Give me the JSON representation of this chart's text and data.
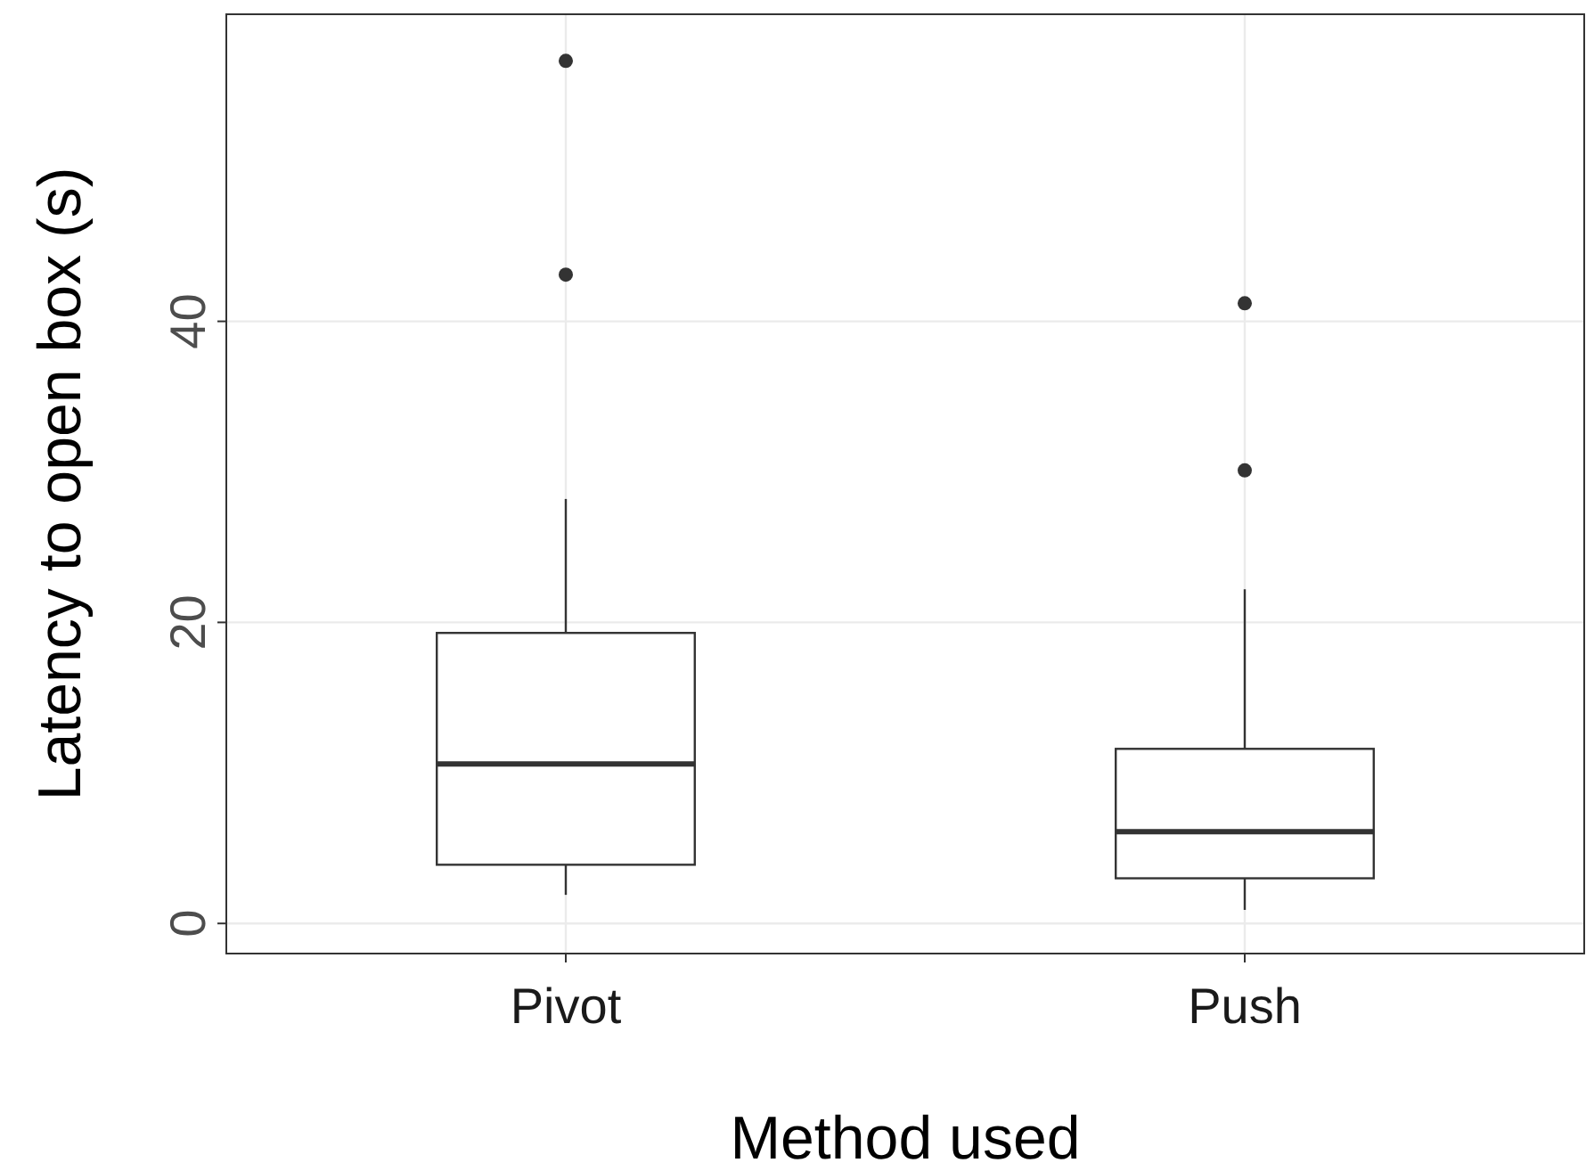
{
  "chart_data": {
    "type": "box",
    "xlabel": "Method used",
    "ylabel": "Latency to open box (s)",
    "categories": [
      "Pivot",
      "Push"
    ],
    "boxes": [
      {
        "low": 1.9,
        "q1": 3.9,
        "median": 10.6,
        "q3": 19.3,
        "high": 28.2,
        "outliers": [
          43.1,
          57.3
        ]
      },
      {
        "low": 0.9,
        "q1": 3.0,
        "median": 6.1,
        "q3": 11.6,
        "high": 22.2,
        "outliers": [
          30.1,
          41.2
        ]
      }
    ],
    "ylim": [
      -2,
      60.4
    ],
    "yticks": [
      0,
      20,
      40
    ],
    "grid": true,
    "color": "#333333"
  }
}
